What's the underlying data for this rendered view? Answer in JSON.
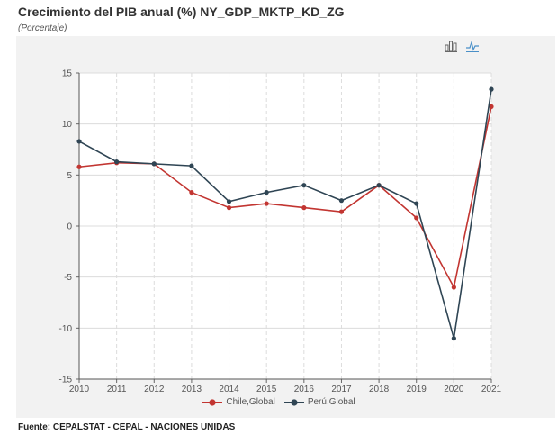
{
  "header": {
    "title": "Crecimiento del PIB anual (%) NY_GDP_MKTP_KD_ZG",
    "subtitle": "(Porcentaje)"
  },
  "toolbar": {
    "bar_icon": "bar-chart-icon",
    "line_icon": "line-chart-icon",
    "accent": "#4a90c8"
  },
  "footer": {
    "source": "Fuente: CEPALSTAT - CEPAL - NACIONES UNIDAS"
  },
  "chart_data": {
    "type": "line",
    "title": "Crecimiento del PIB anual (%) NY_GDP_MKTP_KD_ZG",
    "subtitle": "(Porcentaje)",
    "xlabel": "",
    "ylabel": "",
    "x": [
      "2010",
      "2011",
      "2012",
      "2013",
      "2014",
      "2015",
      "2016",
      "2017",
      "2018",
      "2019",
      "2020",
      "2021"
    ],
    "ylim": [
      -15,
      15
    ],
    "yticks": [
      -15,
      -10,
      -5,
      0,
      5,
      10,
      15
    ],
    "grid": true,
    "legend_position": "bottom",
    "series": [
      {
        "name": "Chile,Global",
        "color": "#c23531",
        "values": [
          5.8,
          6.2,
          6.1,
          3.3,
          1.8,
          2.2,
          1.8,
          1.4,
          4.0,
          0.8,
          -6.0,
          11.7
        ]
      },
      {
        "name": "Perú,Global",
        "color": "#2f4554",
        "values": [
          8.3,
          6.3,
          6.1,
          5.9,
          2.4,
          3.3,
          4.0,
          2.5,
          4.0,
          2.2,
          -11.0,
          13.4
        ]
      }
    ]
  }
}
